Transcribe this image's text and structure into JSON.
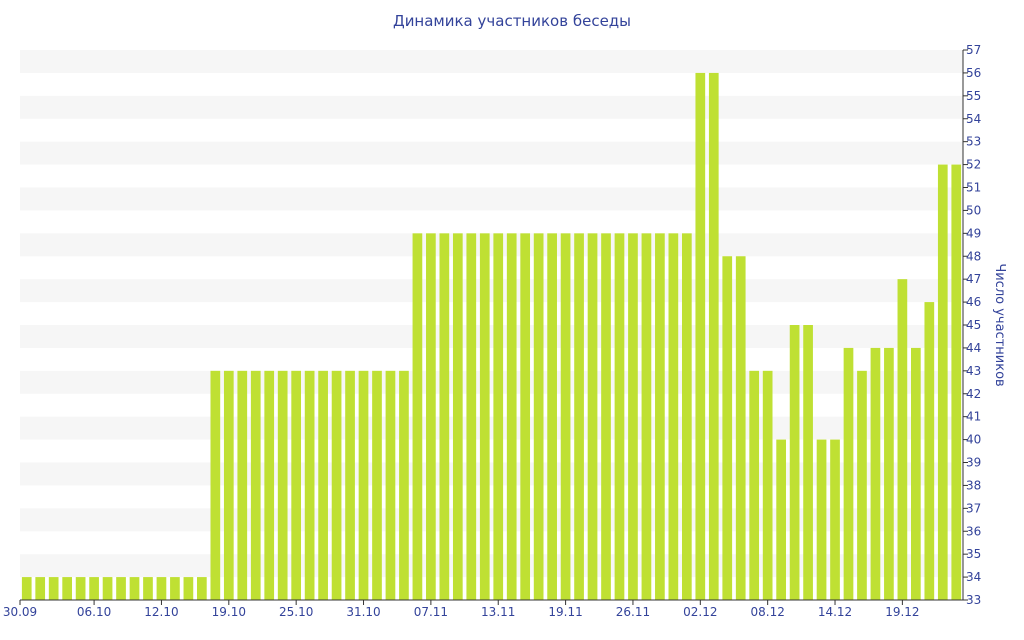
{
  "chart_data": {
    "type": "bar",
    "title": "Динамика участников беседы",
    "ylabel": "Число участников",
    "xlabel": "",
    "ylim": [
      33,
      57
    ],
    "y_axis_side": "right",
    "grid": "alternating horizontal bands",
    "legend": "none",
    "colors": {
      "bar": "#bfe033",
      "band": "#f6f6f6",
      "text": "#33439a",
      "axis": "#333333"
    },
    "yticks": [
      "33",
      "34",
      "35",
      "36",
      "37",
      "38",
      "39",
      "40",
      "41",
      "42",
      "43",
      "44",
      "45",
      "46",
      "47",
      "48",
      "49",
      "50",
      "51",
      "52",
      "53",
      "54",
      "55",
      "56",
      "57"
    ],
    "xtick_labels": [
      "30.09",
      "06.10",
      "12.10",
      "19.10",
      "25.10",
      "31.10",
      "07.11",
      "13.11",
      "19.11",
      "26.11",
      "02.12",
      "08.12",
      "14.12",
      "19.12"
    ],
    "xtick_bar_index": [
      0,
      5,
      10,
      15,
      20,
      25,
      30,
      35,
      40,
      45,
      50,
      55,
      60,
      65
    ],
    "values": [
      34,
      34,
      34,
      34,
      34,
      34,
      34,
      34,
      34,
      34,
      34,
      34,
      34,
      34,
      43,
      43,
      43,
      43,
      43,
      43,
      43,
      43,
      43,
      43,
      43,
      43,
      43,
      43,
      43,
      49,
      49,
      49,
      49,
      49,
      49,
      49,
      49,
      49,
      49,
      49,
      49,
      49,
      49,
      49,
      49,
      49,
      49,
      49,
      49,
      49,
      56,
      56,
      48,
      48,
      43,
      43,
      40,
      45,
      45,
      40,
      40,
      44,
      43,
      44,
      44,
      47,
      44,
      46,
      52,
      52
    ]
  }
}
